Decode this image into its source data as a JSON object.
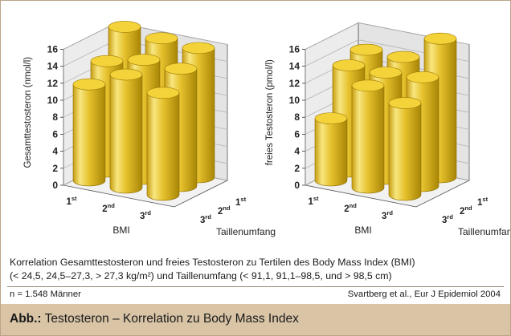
{
  "figure": {
    "caption_line1": "Korrelation Gesamttestosteron und freies Testosteron zu Tertilen des Body Mass Index (BMI)",
    "caption_line2": "(< 24,5, 24,5–27,3, > 27,3 kg/m²) und Taillenumfang (< 91,1, 91,1–98,5, und > 98,5 cm)",
    "sample_size": "n = 1.548 Männer",
    "source": "Svartberg et al., Eur J Epidemiol 2004",
    "footer_prefix": "Abb.:",
    "footer_title": "Testosteron – Korrelation zu Body Mass Index"
  },
  "colors": {
    "bar_light": "#f8e680",
    "bar_mid": "#e6c12c",
    "bar_dark": "#a88506",
    "top_fill": "#f4d23a",
    "wall_fill": "#e4e4e4",
    "grid_line": "#b4b4b4",
    "footer_bg": "#d9c4a6"
  },
  "chart_data": [
    {
      "type": "bar",
      "ylabel": "Gesamttestosteron (nmol/l)",
      "ylim": [
        0,
        16
      ],
      "yticks": [
        0,
        2,
        4,
        6,
        8,
        10,
        12,
        14,
        16
      ],
      "x_axis_label": "BMI",
      "x_categories": [
        {
          "base": "1",
          "sup": "st"
        },
        {
          "base": "2",
          "sup": "nd"
        },
        {
          "base": "3",
          "sup": "rd"
        }
      ],
      "z_axis_label": "Taillenumfang",
      "z_categories": [
        {
          "base": "1",
          "sup": "st"
        },
        {
          "base": "2",
          "sup": "nd"
        },
        {
          "base": "3",
          "sup": "rd"
        }
      ],
      "series": [
        {
          "name": "Taillenumfang 1st",
          "values": [
            16.0,
            15.5,
            15.2
          ]
        },
        {
          "name": "Taillenumfang 2nd",
          "values": [
            13.0,
            14.0,
            13.8
          ]
        },
        {
          "name": "Taillenumfang 3rd",
          "values": [
            11.3,
            13.3,
            12.0
          ]
        }
      ]
    },
    {
      "type": "bar",
      "ylabel": "freies Testosteron (pmol/l)",
      "ylim": [
        0,
        16
      ],
      "yticks": [
        0,
        2,
        4,
        6,
        8,
        10,
        12,
        14,
        16
      ],
      "x_axis_label": "BMI",
      "x_categories": [
        {
          "base": "1",
          "sup": "st"
        },
        {
          "base": "2",
          "sup": "nd"
        },
        {
          "base": "3",
          "sup": "rd"
        }
      ],
      "z_axis_label": "Taillenumfang",
      "z_categories": [
        {
          "base": "1",
          "sup": "st"
        },
        {
          "base": "2",
          "sup": "nd"
        },
        {
          "base": "3",
          "sup": "rd"
        }
      ],
      "series": [
        {
          "name": "Taillenumfang 1st",
          "values": [
            13.3,
            13.3,
            16.3
          ]
        },
        {
          "name": "Taillenumfang 2nd",
          "values": [
            12.5,
            12.5,
            12.8
          ]
        },
        {
          "name": "Taillenumfang 3rd",
          "values": [
            7.3,
            12.0,
            10.8
          ]
        }
      ]
    }
  ]
}
